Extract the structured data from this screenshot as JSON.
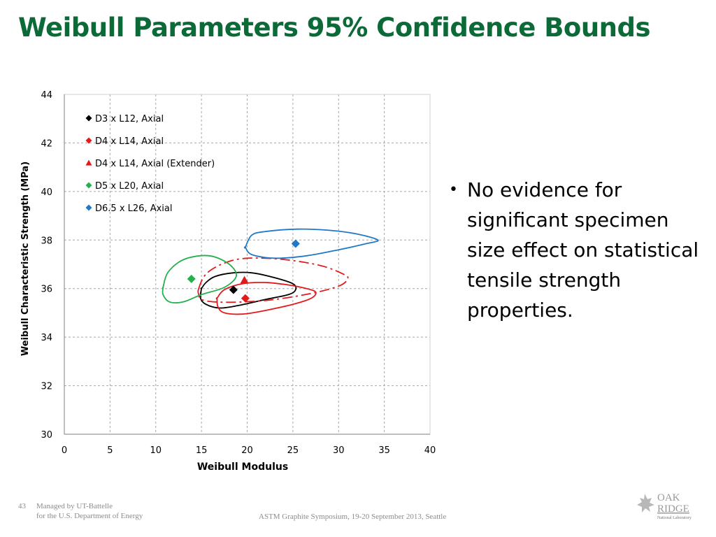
{
  "slide": {
    "title": "Weibull Parameters 95% Confidence Bounds",
    "bullet_marker": "•",
    "bullet": "No evidence for significant specimen size effect on statistical tensile strength properties."
  },
  "footer": {
    "page_number": "43",
    "managed_line1": "Managed by UT-Battelle",
    "managed_line2": "for the U.S. Department of Energy",
    "event": "ASTM Graphite Symposium, 19-20 September 2013, Seattle",
    "logo_line1": "OAK",
    "logo_line2": "RIDGE",
    "logo_line3": "National Laboratory"
  },
  "chart_data": {
    "type": "scatter",
    "xlabel": "Weibull  Modulus",
    "ylabel": "Weibull Characteristic  Strength (MPa)",
    "xlim": [
      0,
      40
    ],
    "ylim": [
      30,
      44
    ],
    "xticks": [
      0,
      5,
      10,
      15,
      20,
      25,
      30,
      35,
      40
    ],
    "yticks": [
      30,
      32,
      34,
      36,
      38,
      40,
      42,
      44
    ],
    "grid": true,
    "legend_position": "top-left",
    "series": [
      {
        "name": "D3 x L12, Axial",
        "color": "#000000",
        "marker": "diamond",
        "point": [
          18.5,
          35.95
        ],
        "bound": [
          [
            15,
            36.0
          ],
          [
            15.5,
            36.25
          ],
          [
            16.5,
            36.5
          ],
          [
            18.5,
            36.65
          ],
          [
            20.5,
            36.65
          ],
          [
            23,
            36.45
          ],
          [
            25,
            36.2
          ],
          [
            25.3,
            35.95
          ],
          [
            24.5,
            35.75
          ],
          [
            22,
            35.55
          ],
          [
            19,
            35.3
          ],
          [
            17,
            35.2
          ],
          [
            15.5,
            35.35
          ],
          [
            14.9,
            35.6
          ],
          [
            15,
            36.0
          ]
        ],
        "dash": "solid"
      },
      {
        "name": "D4 x L14, Axial",
        "color": "#e31a1c",
        "marker": "diamond",
        "point": [
          19.8,
          35.6
        ],
        "bound": [
          [
            16.7,
            35.6
          ],
          [
            17.5,
            35.95
          ],
          [
            19.5,
            36.2
          ],
          [
            22,
            36.25
          ],
          [
            24.5,
            36.15
          ],
          [
            26.5,
            36.0
          ],
          [
            27.5,
            35.85
          ],
          [
            27,
            35.6
          ],
          [
            25,
            35.35
          ],
          [
            22,
            35.1
          ],
          [
            19.5,
            34.95
          ],
          [
            17.5,
            35.0
          ],
          [
            16.8,
            35.25
          ],
          [
            16.7,
            35.6
          ]
        ],
        "dash": "solid"
      },
      {
        "name": "D4 x L14, Axial (Extender)",
        "color": "#e31a1c",
        "marker": "triangle",
        "point": [
          19.7,
          36.35
        ],
        "bound": [
          [
            14.7,
            36.0
          ],
          [
            15.5,
            36.6
          ],
          [
            17.5,
            37.05
          ],
          [
            20,
            37.25
          ],
          [
            24,
            37.2
          ],
          [
            28,
            36.95
          ],
          [
            30.5,
            36.6
          ],
          [
            31,
            36.4
          ],
          [
            30,
            36.1
          ],
          [
            27,
            35.8
          ],
          [
            23,
            35.55
          ],
          [
            19.5,
            35.45
          ],
          [
            16.5,
            35.45
          ],
          [
            15,
            35.55
          ],
          [
            14.7,
            35.75
          ]
        ],
        "dash": "dashdot"
      },
      {
        "name": "D5 x L20, Axial",
        "color": "#22b14c",
        "marker": "diamond",
        "point": [
          13.9,
          36.4
        ],
        "bound": [
          [
            10.8,
            36.05
          ],
          [
            11.3,
            36.65
          ],
          [
            12.8,
            37.15
          ],
          [
            14.8,
            37.35
          ],
          [
            16.5,
            37.3
          ],
          [
            18.2,
            36.95
          ],
          [
            18.8,
            36.5
          ],
          [
            17.5,
            36.05
          ],
          [
            15,
            35.75
          ],
          [
            13,
            35.45
          ],
          [
            11.5,
            35.45
          ],
          [
            10.8,
            35.75
          ],
          [
            10.8,
            36.05
          ]
        ],
        "dash": "solid"
      },
      {
        "name": "D6.5 x L26, Axial",
        "color": "#1f78c8",
        "marker": "diamond",
        "point": [
          25.3,
          37.85
        ],
        "bound": [
          [
            19.8,
            37.7
          ],
          [
            20.5,
            38.2
          ],
          [
            22,
            38.35
          ],
          [
            25.5,
            38.45
          ],
          [
            29,
            38.4
          ],
          [
            32,
            38.25
          ],
          [
            34.3,
            38.0
          ],
          [
            33,
            37.85
          ],
          [
            30,
            37.6
          ],
          [
            26.5,
            37.35
          ],
          [
            23,
            37.25
          ],
          [
            20.5,
            37.4
          ],
          [
            19.8,
            37.7
          ]
        ],
        "dash": "solid"
      }
    ]
  }
}
